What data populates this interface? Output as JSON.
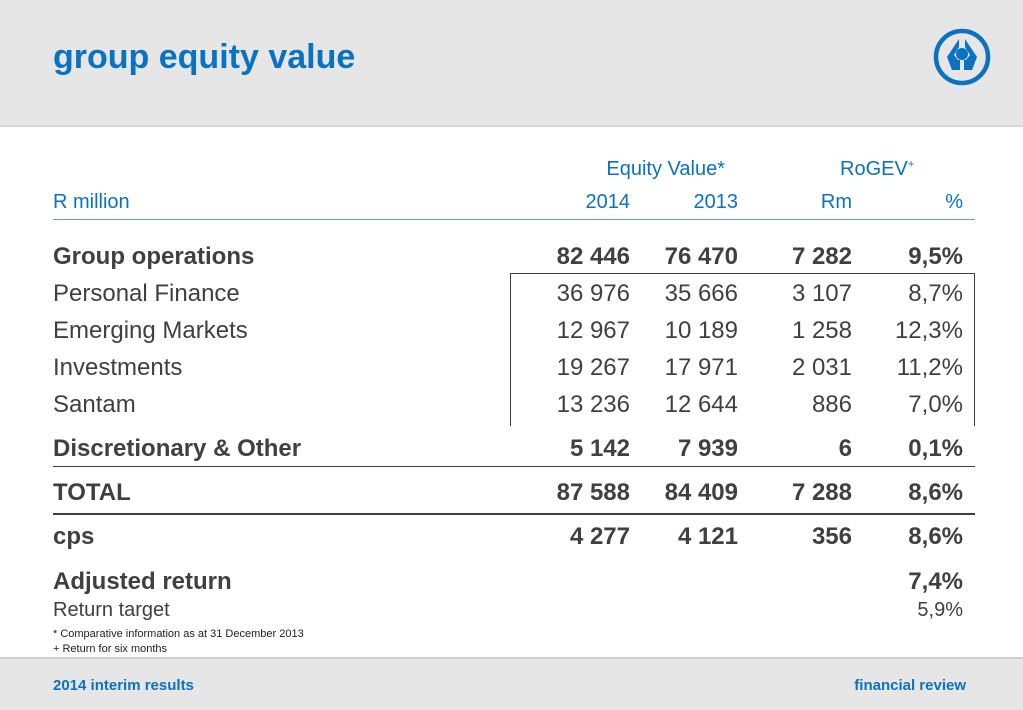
{
  "header": {
    "title": "group equity value",
    "logo_icon": "sanlam-logo-icon"
  },
  "table": {
    "group_headers": {
      "equity_value": "Equity Value*",
      "rogev": "RoGEV",
      "rogev_sup": "+"
    },
    "columns": {
      "label": "R million",
      "c1": "2014",
      "c2": "2013",
      "c3": "Rm",
      "c4": "%"
    },
    "rows": [
      {
        "label": "Group operations",
        "v": [
          "82 446",
          "76 470",
          "7 282",
          "9,5%"
        ],
        "bold": true
      },
      {
        "label": "Personal Finance",
        "v": [
          "36 976",
          "35 666",
          "3 107",
          "8,7%"
        ]
      },
      {
        "label": "Emerging Markets",
        "v": [
          "12 967",
          "10 189",
          "1 258",
          "12,3%"
        ]
      },
      {
        "label": "Investments",
        "v": [
          "19 267",
          "17 971",
          "2 031",
          "11,2%"
        ]
      },
      {
        "label": "Santam",
        "v": [
          "13 236",
          "12 644",
          "886",
          "7,0%"
        ]
      },
      {
        "label": "Discretionary & Other",
        "v": [
          "5 142",
          "7 939",
          "6",
          "0,1%"
        ],
        "bold": true
      },
      {
        "label": "TOTAL",
        "v": [
          "87 588",
          "84 409",
          "7 288",
          "8,6%"
        ],
        "bold": true
      },
      {
        "label": "cps",
        "v": [
          "4 277",
          "4 121",
          "356",
          "8,6%"
        ],
        "bold": true
      }
    ],
    "adjusted_return": {
      "label": "Adjusted return",
      "value": "7,4%"
    },
    "return_target": {
      "label": "Return target",
      "value": "5,9%"
    }
  },
  "footnotes": [
    "* Comparative information as at 31 December 2013",
    "+ Return for six months"
  ],
  "footer": {
    "left": "2014 interim results",
    "right": "financial review"
  },
  "colors": {
    "accent": "#0a72c2",
    "text": "#404040",
    "band": "#e6e6e6"
  }
}
